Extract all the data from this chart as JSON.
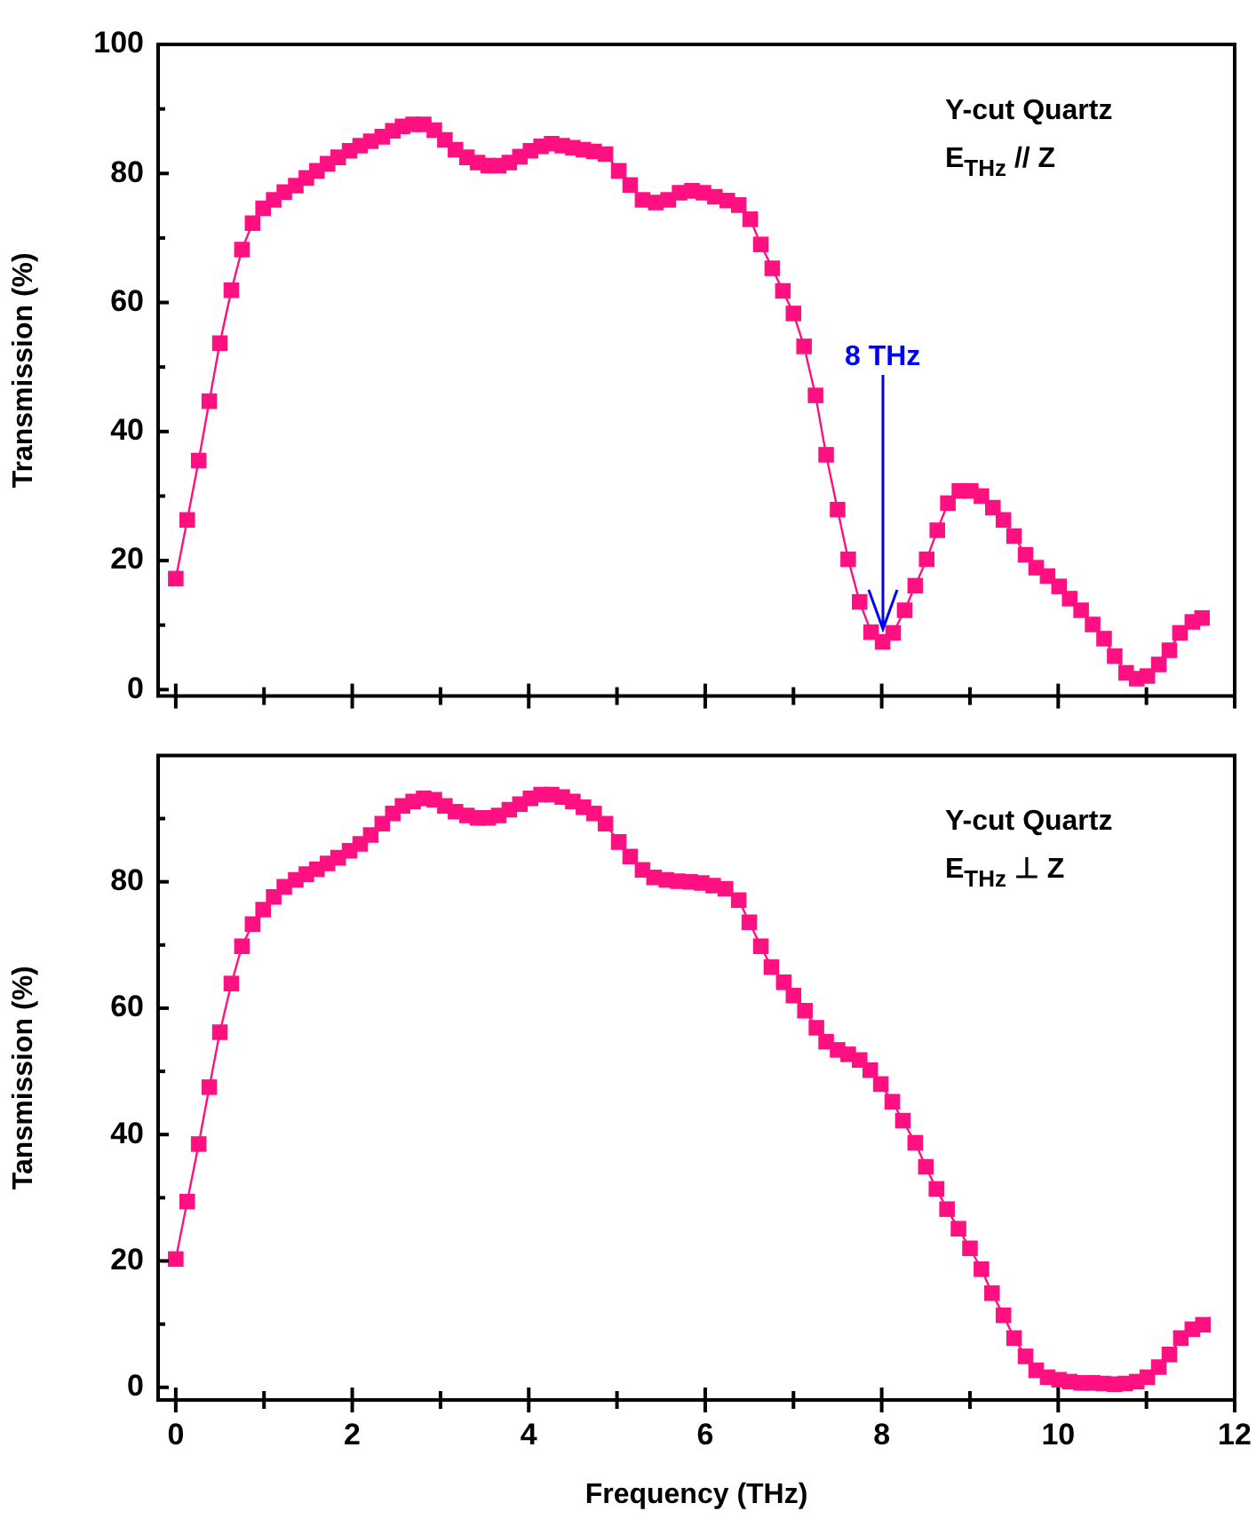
{
  "chart_data": [
    {
      "type": "line",
      "ylabel": "Transmission (%)",
      "xlim": [
        -0.2,
        12
      ],
      "xticks": [
        0,
        {
          "value": 1,
          "label": null
        },
        2,
        {
          "value": 3,
          "label": null
        },
        4,
        {
          "value": 5,
          "label": null
        },
        6,
        {
          "value": 7,
          "label": null
        },
        8,
        {
          "value": 9,
          "label": null
        },
        10,
        {
          "value": 11,
          "label": null
        },
        12
      ],
      "ylim": [
        -1,
        100
      ],
      "yticks": [
        0,
        {
          "value": 10,
          "label": null
        },
        20,
        {
          "value": 30,
          "label": null
        },
        40,
        {
          "value": 50,
          "label": null
        },
        60,
        {
          "value": 70,
          "label": null
        },
        80,
        {
          "value": 90,
          "label": null
        },
        100
      ],
      "tick_labels": "y",
      "marker": "square",
      "line_style": "solid",
      "annotations": [
        "Y-cut Quartz",
        "E$_{THz}$ // Z",
        {
          "text": "8 THz",
          "x": 8.01,
          "y": 7.4
        }
      ],
      "series": [
        {
          "color": "#ff1080",
          "x": [
            0,
            0.13,
            0.26,
            0.38,
            0.5,
            0.63,
            0.75,
            0.87,
            0.99,
            1.11,
            1.23,
            1.36,
            1.48,
            1.6,
            1.72,
            1.84,
            1.97,
            2.09,
            2.21,
            2.34,
            2.46,
            2.57,
            2.69,
            2.81,
            2.93,
            3.05,
            3.17,
            3.3,
            3.42,
            3.54,
            3.66,
            3.78,
            3.9,
            4.02,
            4.14,
            4.26,
            4.38,
            4.5,
            4.62,
            4.74,
            4.87,
            5.02,
            5.15,
            5.29,
            5.44,
            5.58,
            5.71,
            5.85,
            5.98,
            6.11,
            6.25,
            6.38,
            6.51,
            6.63,
            6.76,
            6.88,
            7.0,
            7.12,
            7.25,
            7.37,
            7.5,
            7.62,
            7.75,
            7.88,
            8.01,
            8.13,
            8.26,
            8.38,
            8.51,
            8.63,
            8.75,
            8.88,
            9.01,
            9.13,
            9.26,
            9.38,
            9.5,
            9.63,
            9.75,
            9.88,
            10.01,
            10.13,
            10.26,
            10.39,
            10.52,
            10.64,
            10.77,
            10.89,
            11.01,
            11.14,
            11.26,
            11.38,
            11.52,
            11.63
          ],
          "values": [
            17.2,
            26.3,
            35.5,
            44.7,
            53.7,
            61.9,
            68.2,
            72.3,
            74.6,
            75.9,
            77.1,
            78.1,
            79.3,
            80.4,
            81.5,
            82.5,
            83.5,
            84.3,
            85,
            85.7,
            86.6,
            87.3,
            87.6,
            87.6,
            86.7,
            85.2,
            83.7,
            82.5,
            81.7,
            81.2,
            81.2,
            81.7,
            82.6,
            83.5,
            84.2,
            84.6,
            84.3,
            84,
            83.7,
            83.4,
            83,
            80.4,
            78.2,
            75.9,
            75.5,
            75.9,
            77,
            77.3,
            77,
            76.4,
            75.8,
            75.1,
            72.9,
            69,
            65.3,
            61.8,
            58.3,
            53.2,
            45.6,
            36.4,
            27.9,
            20.2,
            13.6,
            8.9,
            7.4,
            8.8,
            12.3,
            16.1,
            20.2,
            24.7,
            28.9,
            30.8,
            30.8,
            30,
            28.2,
            26.3,
            23.8,
            20.9,
            18.9,
            17.6,
            16,
            14.1,
            12.3,
            10.1,
            7.9,
            5.2,
            2.6,
            1.7,
            2.1,
            3.9,
            6.1,
            8.8,
            10.5,
            11.1
          ]
        }
      ]
    },
    {
      "type": "line",
      "xlabel": "Frequency (THz)",
      "ylabel": "Tansmission (%)",
      "xlim": [
        -0.2,
        12
      ],
      "xticks": [
        0,
        {
          "value": 1,
          "label": null
        },
        2,
        {
          "value": 3,
          "label": null
        },
        4,
        {
          "value": 5,
          "label": null
        },
        6,
        {
          "value": 7,
          "label": null
        },
        8,
        {
          "value": 9,
          "label": null
        },
        10,
        {
          "value": 11,
          "label": null
        },
        12
      ],
      "ylim": [
        -2,
        100
      ],
      "yticks": [
        0,
        {
          "value": 10,
          "label": null
        },
        20,
        {
          "value": 30,
          "label": null
        },
        40,
        {
          "value": 50,
          "label": null
        },
        60,
        {
          "value": 70,
          "label": null
        },
        80,
        {
          "value": 90,
          "label": null
        }
      ],
      "marker": "square",
      "line_style": "solid",
      "annotations": [
        "Y-cut Quartz",
        "E$_{THz}$ ⊥ Z"
      ],
      "series": [
        {
          "color": "#ff1080",
          "x": [
            0,
            0.13,
            0.26,
            0.38,
            0.5,
            0.63,
            0.75,
            0.87,
            0.99,
            1.11,
            1.23,
            1.36,
            1.48,
            1.6,
            1.72,
            1.84,
            1.97,
            2.09,
            2.21,
            2.34,
            2.46,
            2.57,
            2.69,
            2.81,
            2.93,
            3.05,
            3.17,
            3.3,
            3.42,
            3.54,
            3.66,
            3.78,
            3.9,
            4.02,
            4.14,
            4.26,
            4.38,
            4.5,
            4.62,
            4.74,
            4.87,
            5.02,
            5.15,
            5.29,
            5.42,
            5.56,
            5.69,
            5.83,
            5.96,
            6.09,
            6.23,
            6.38,
            6.5,
            6.63,
            6.75,
            6.89,
            7.0,
            7.13,
            7.26,
            7.37,
            7.5,
            7.62,
            7.75,
            7.87,
            7.99,
            8.12,
            8.24,
            8.38,
            8.5,
            8.62,
            8.74,
            8.87,
            9.0,
            9.13,
            9.25,
            9.38,
            9.5,
            9.63,
            9.75,
            9.88,
            10.01,
            10.13,
            10.26,
            10.39,
            10.51,
            10.64,
            10.76,
            10.89,
            11.01,
            11.14,
            11.26,
            11.39,
            11.52,
            11.64
          ],
          "values": [
            20.3,
            29.4,
            38.5,
            47.5,
            56.2,
            63.9,
            69.8,
            73.3,
            75.6,
            77.6,
            79.2,
            80.3,
            81.2,
            82,
            82.9,
            83.8,
            84.9,
            86,
            87.4,
            89.2,
            90.8,
            92,
            92.7,
            93.2,
            93,
            92,
            91.1,
            90.5,
            90.1,
            90.1,
            90.5,
            91.4,
            92.3,
            93.2,
            93.8,
            93.8,
            93.4,
            92.7,
            91.8,
            90.8,
            89.2,
            86.3,
            84,
            81.9,
            80.7,
            80.3,
            80.1,
            80,
            79.8,
            79.4,
            78.9,
            77.1,
            73.6,
            69.8,
            66.5,
            64.1,
            62,
            59.6,
            56.9,
            54.7,
            53.4,
            52.7,
            51.8,
            50.2,
            48,
            45.2,
            42.2,
            38.7,
            34.9,
            31.4,
            28.2,
            25.1,
            22,
            18.7,
            14.9,
            11.4,
            7.8,
            4.9,
            2.7,
            1.6,
            1.2,
            0.9,
            0.7,
            0.7,
            0.6,
            0.5,
            0.6,
            0.9,
            1.6,
            3.2,
            5.2,
            7.8,
            9.2,
            9.9
          ]
        }
      ]
    }
  ]
}
